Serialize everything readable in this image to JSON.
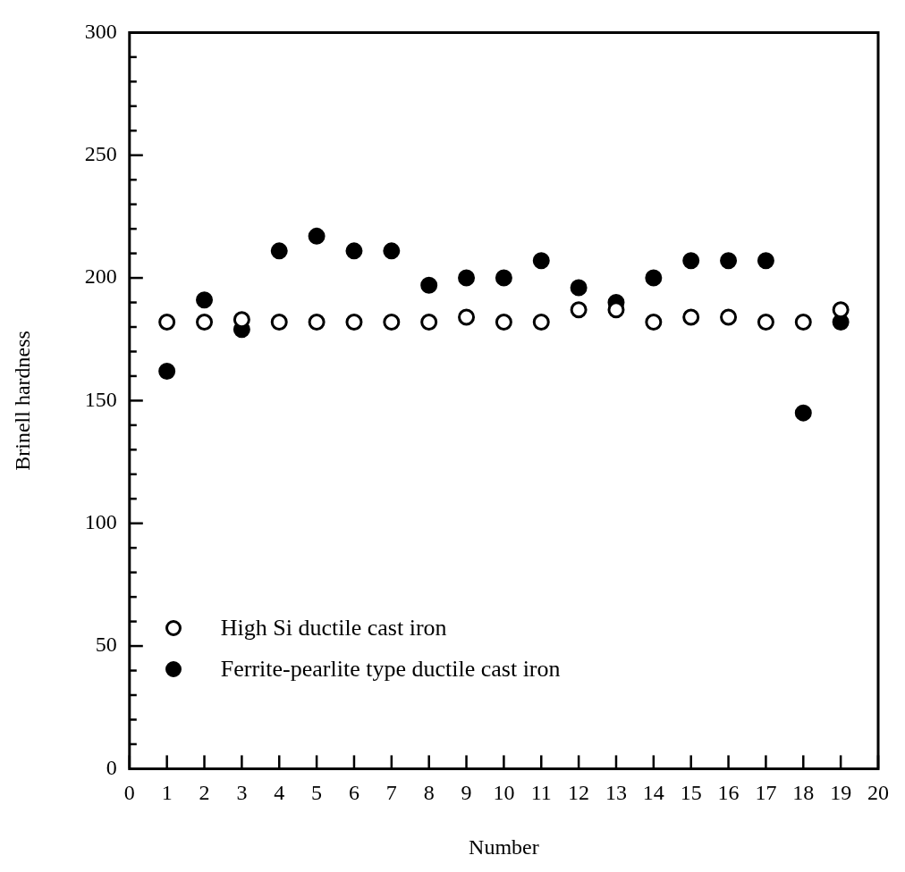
{
  "chart_data": {
    "type": "scatter",
    "xlabel": "Number",
    "ylabel": "Brinell hardness",
    "x": [
      1,
      2,
      3,
      4,
      5,
      6,
      7,
      8,
      9,
      10,
      11,
      12,
      13,
      14,
      15,
      16,
      17,
      18,
      19
    ],
    "series": [
      {
        "name": "High Si ductile cast iron",
        "color": "#ffffff",
        "values": [
          182,
          182,
          183,
          182,
          182,
          182,
          182,
          182,
          184,
          182,
          182,
          187,
          187,
          182,
          184,
          184,
          182,
          182,
          187
        ]
      },
      {
        "name": "Ferrite-pearlite type ductile cast iron",
        "color": "#000000",
        "values": [
          162,
          191,
          179,
          211,
          217,
          211,
          211,
          197,
          200,
          200,
          207,
          196,
          190,
          200,
          207,
          207,
          207,
          145,
          182
        ]
      }
    ],
    "xlim": [
      0,
      20
    ],
    "xticks": [
      0,
      1,
      2,
      3,
      4,
      5,
      6,
      7,
      8,
      9,
      10,
      11,
      12,
      13,
      14,
      15,
      16,
      17,
      18,
      19,
      20
    ],
    "ylim": [
      0,
      300
    ],
    "yticks": [
      0,
      {
        "value": 10,
        "label": null
      },
      {
        "value": 20,
        "label": null
      },
      {
        "value": 30,
        "label": null
      },
      {
        "value": 40,
        "label": null
      },
      50,
      {
        "value": 60,
        "label": null
      },
      {
        "value": 70,
        "label": null
      },
      {
        "value": 80,
        "label": null
      },
      {
        "value": 90,
        "label": null
      },
      100,
      {
        "value": 110,
        "label": null
      },
      {
        "value": 120,
        "label": null
      },
      {
        "value": 130,
        "label": null
      },
      {
        "value": 140,
        "label": null
      },
      150,
      {
        "value": 160,
        "label": null
      },
      {
        "value": 170,
        "label": null
      },
      {
        "value": 180,
        "label": null
      },
      {
        "value": 190,
        "label": null
      },
      200,
      {
        "value": 210,
        "label": null
      },
      {
        "value": 220,
        "label": null
      },
      {
        "value": 230,
        "label": null
      },
      {
        "value": 240,
        "label": null
      },
      250,
      {
        "value": 260,
        "label": null
      },
      {
        "value": 270,
        "label": null
      },
      {
        "value": 280,
        "label": null
      },
      {
        "value": 290,
        "label": null
      },
      300
    ],
    "grid": false,
    "legend": "bottom left",
    "marker": "circle"
  }
}
